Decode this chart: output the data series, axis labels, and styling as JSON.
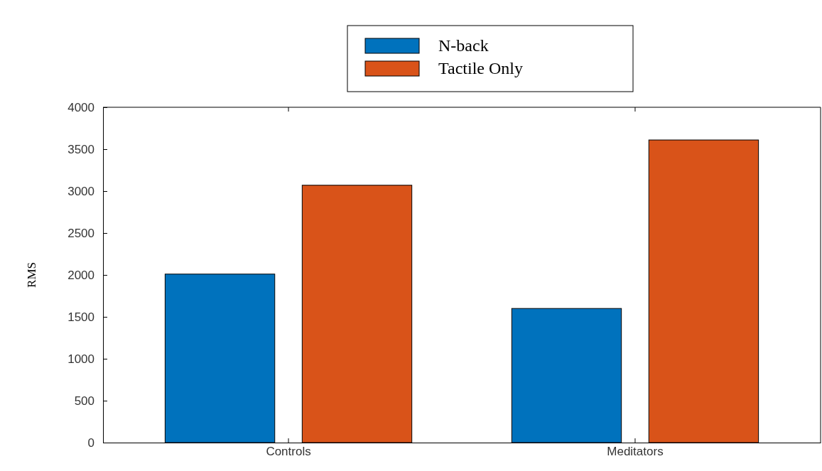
{
  "chart_data": {
    "type": "bar",
    "ylabel": "RMS",
    "categories": [
      "Controls",
      "Meditators"
    ],
    "series": [
      {
        "name": "N-back",
        "color": "#0072bd",
        "values": [
          2010,
          1600
        ]
      },
      {
        "name": "Tactile Only",
        "color": "#d95319",
        "values": [
          3070,
          3610
        ]
      }
    ],
    "ylim": [
      0,
      4000
    ],
    "yticks": [
      0,
      500,
      1000,
      1500,
      2000,
      2500,
      3000,
      3500,
      4000
    ],
    "grid": false,
    "legend": "top"
  }
}
